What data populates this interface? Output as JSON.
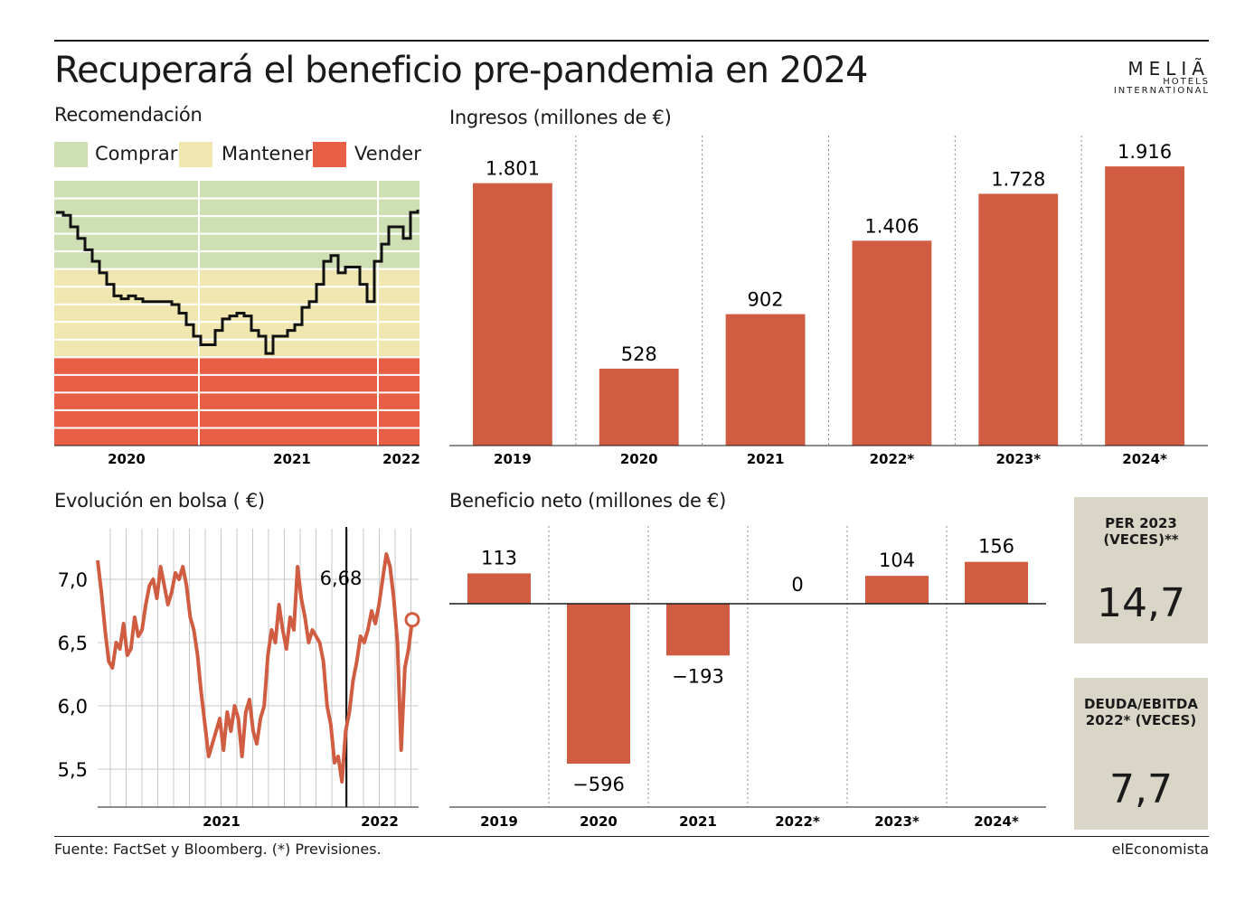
{
  "title": "Recuperará el beneficio pre-pandemia en 2024",
  "logo": {
    "line1": "MELIÃ",
    "line2": "HOTELS",
    "line3": "INTERNATIONAL"
  },
  "colors": {
    "accent": "#d05d41",
    "buy": "#cfdfb4",
    "hold": "#f0e7b0",
    "sell": "#e85f45",
    "kpi_bg": "#d9d6c8"
  },
  "recomendacion": {
    "title": "Recomendación",
    "legend": [
      {
        "label": "Comprar",
        "color": "#cfdfb4"
      },
      {
        "label": "Mantener",
        "color": "#f0e7b0"
      },
      {
        "label": "Vender",
        "color": "#e85f45"
      }
    ]
  },
  "bolsa": {
    "title": "Evolución en bolsa ( €)",
    "marker_label": "6,68"
  },
  "kpis": [
    {
      "label_line1": "PER 2023",
      "label_line2": "(VECES)**",
      "value": "14,7"
    },
    {
      "label_line1": "DEUDA/EBITDA",
      "label_line2": "2022* (VECES)",
      "value": "7,7"
    }
  ],
  "footer": {
    "source": "Fuente: FactSet y Bloomberg. (*) Previsiones.",
    "brand": "elEconomista"
  },
  "chart_data": [
    {
      "type": "line",
      "id": "recomendacion",
      "title": "Recomendación",
      "x_tick_labels": [
        "2020",
        "2021",
        "2022"
      ],
      "bands": [
        "Comprar",
        "Mantener",
        "Vender"
      ],
      "series": [
        {
          "values": [
            5.05,
            5.0,
            4.8,
            4.6,
            4.4,
            4.2,
            4.0,
            3.8,
            3.6,
            3.55,
            3.6,
            3.55,
            3.5,
            3.5,
            3.5,
            3.5,
            3.45,
            3.3,
            3.1,
            2.9,
            2.75,
            2.75,
            3.0,
            3.2,
            3.25,
            3.3,
            3.25,
            3.0,
            2.9,
            2.6,
            2.9,
            2.9,
            3.0,
            3.1,
            3.4,
            3.5,
            3.8,
            4.2,
            4.3,
            4.0,
            4.1,
            4.1,
            3.8,
            3.5,
            4.2,
            4.5,
            4.8,
            4.8,
            4.6,
            5.05,
            5.1
          ]
        }
      ]
    },
    {
      "type": "bar",
      "id": "ingresos",
      "title": "Ingresos (millones de €)",
      "categories": [
        "2019",
        "2020",
        "2021",
        "2022*",
        "2023*",
        "2024*"
      ],
      "values": [
        1801,
        528,
        902,
        1406,
        1728,
        1916
      ],
      "labels": [
        "1.801",
        "528",
        "902",
        "1.406",
        "1.728",
        "1.916"
      ],
      "ylim": [
        0,
        2000
      ]
    },
    {
      "type": "line",
      "id": "bolsa",
      "title": "Evolución en bolsa ( €)",
      "x_tick_labels": [
        "2021",
        "2022"
      ],
      "y_tick_labels": [
        "5,5",
        "6,0",
        "6,5",
        "7,0"
      ],
      "ylim": [
        5.2,
        7.4
      ],
      "series": [
        {
          "values": [
            7.15,
            6.9,
            6.6,
            6.35,
            6.3,
            6.5,
            6.45,
            6.65,
            6.4,
            6.45,
            6.7,
            6.55,
            6.6,
            6.8,
            6.95,
            7.0,
            6.85,
            7.1,
            6.95,
            6.8,
            6.9,
            7.05,
            7.0,
            7.1,
            6.95,
            6.7,
            6.6,
            6.4,
            6.1,
            5.85,
            5.6,
            5.7,
            5.8,
            5.9,
            5.65,
            5.95,
            5.8,
            6.0,
            5.9,
            5.6,
            5.95,
            6.05,
            5.8,
            5.7,
            5.9,
            6.0,
            6.4,
            6.6,
            6.5,
            6.8,
            6.6,
            6.45,
            6.7,
            6.6,
            7.1,
            6.85,
            6.7,
            6.5,
            6.6,
            6.55,
            6.5,
            6.35,
            6.0,
            5.85,
            5.55,
            5.6,
            5.4,
            5.8,
            5.95,
            6.2,
            6.35,
            6.55,
            6.5,
            6.6,
            6.75,
            6.65,
            6.8,
            7.0,
            7.2,
            7.1,
            6.85,
            6.5,
            5.65,
            6.3,
            6.45,
            6.68
          ]
        }
      ]
    },
    {
      "type": "bar",
      "id": "beneficio",
      "title": "Beneficio neto (millones de €)",
      "categories": [
        "2019",
        "2020",
        "2021",
        "2022*",
        "2023*",
        "2024*"
      ],
      "values": [
        113,
        -596,
        -193,
        0,
        104,
        156
      ],
      "labels": [
        "113",
        "−596",
        "−193",
        "0",
        "104",
        "156"
      ],
      "ylim": [
        -700,
        250
      ]
    }
  ]
}
